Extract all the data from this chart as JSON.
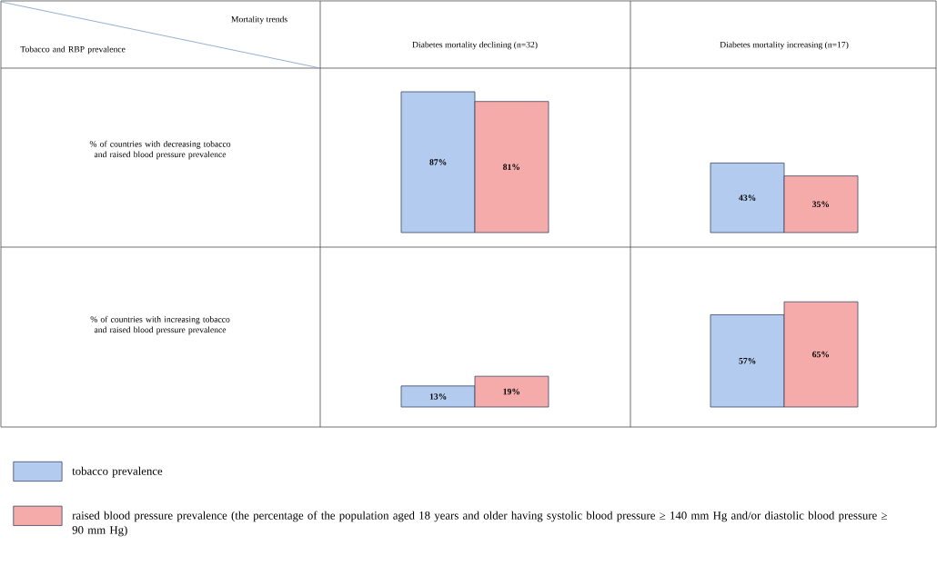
{
  "chart_data": [
    {
      "type": "other",
      "annotations": [
        "Mortality trends",
        "Tobacco and RBP prevalence",
        "Diabetes mortality declining (n=32)",
        "Diabetes mortality increasing (n=17)",
        "% of countries with decreasing tobacco and raised blood pressure prevalence",
        "% of countries with increasing tobacco and raised blood pressure prevalence"
      ]
    },
    {
      "type": "bar",
      "categories": [
        null
      ],
      "data_labels": true,
      "legend": "bottom",
      "series": [
        {
          "name": "tobacco prevalence",
          "color": "#b3cbef",
          "values": [
            87
          ],
          "value_labels": [
            "87%"
          ]
        },
        {
          "name": "raised blood pressure prevalence (the percentage of the population aged 18 years and older having systolic blood pressure ≥ 140 mm Hg and/or diastolic blood pressure ≥ 90 mm Hg)",
          "color": "#f6abab",
          "values": [
            81
          ],
          "value_labels": [
            "81%"
          ]
        }
      ]
    },
    {
      "type": "bar",
      "categories": [
        null
      ],
      "data_labels": true,
      "series": [
        {
          "color": "#b3cbef",
          "values": [
            43
          ],
          "value_labels": [
            "43%"
          ]
        },
        {
          "color": "#f6abab",
          "values": [
            35
          ],
          "value_labels": [
            "35%"
          ]
        }
      ]
    },
    {
      "type": "bar",
      "categories": [
        null
      ],
      "data_labels": true,
      "series": [
        {
          "color": "#b3cbef",
          "values": [
            13
          ],
          "value_labels": [
            "13%"
          ]
        },
        {
          "color": "#f6abab",
          "values": [
            19
          ],
          "value_labels": [
            "19%"
          ]
        }
      ]
    },
    {
      "type": "bar",
      "categories": [
        null
      ],
      "data_labels": true,
      "series": [
        {
          "color": "#b3cbef",
          "values": [
            57
          ],
          "value_labels": [
            "57%"
          ]
        },
        {
          "color": "#f6abab",
          "values": [
            65
          ],
          "value_labels": [
            "65%"
          ]
        }
      ]
    }
  ]
}
